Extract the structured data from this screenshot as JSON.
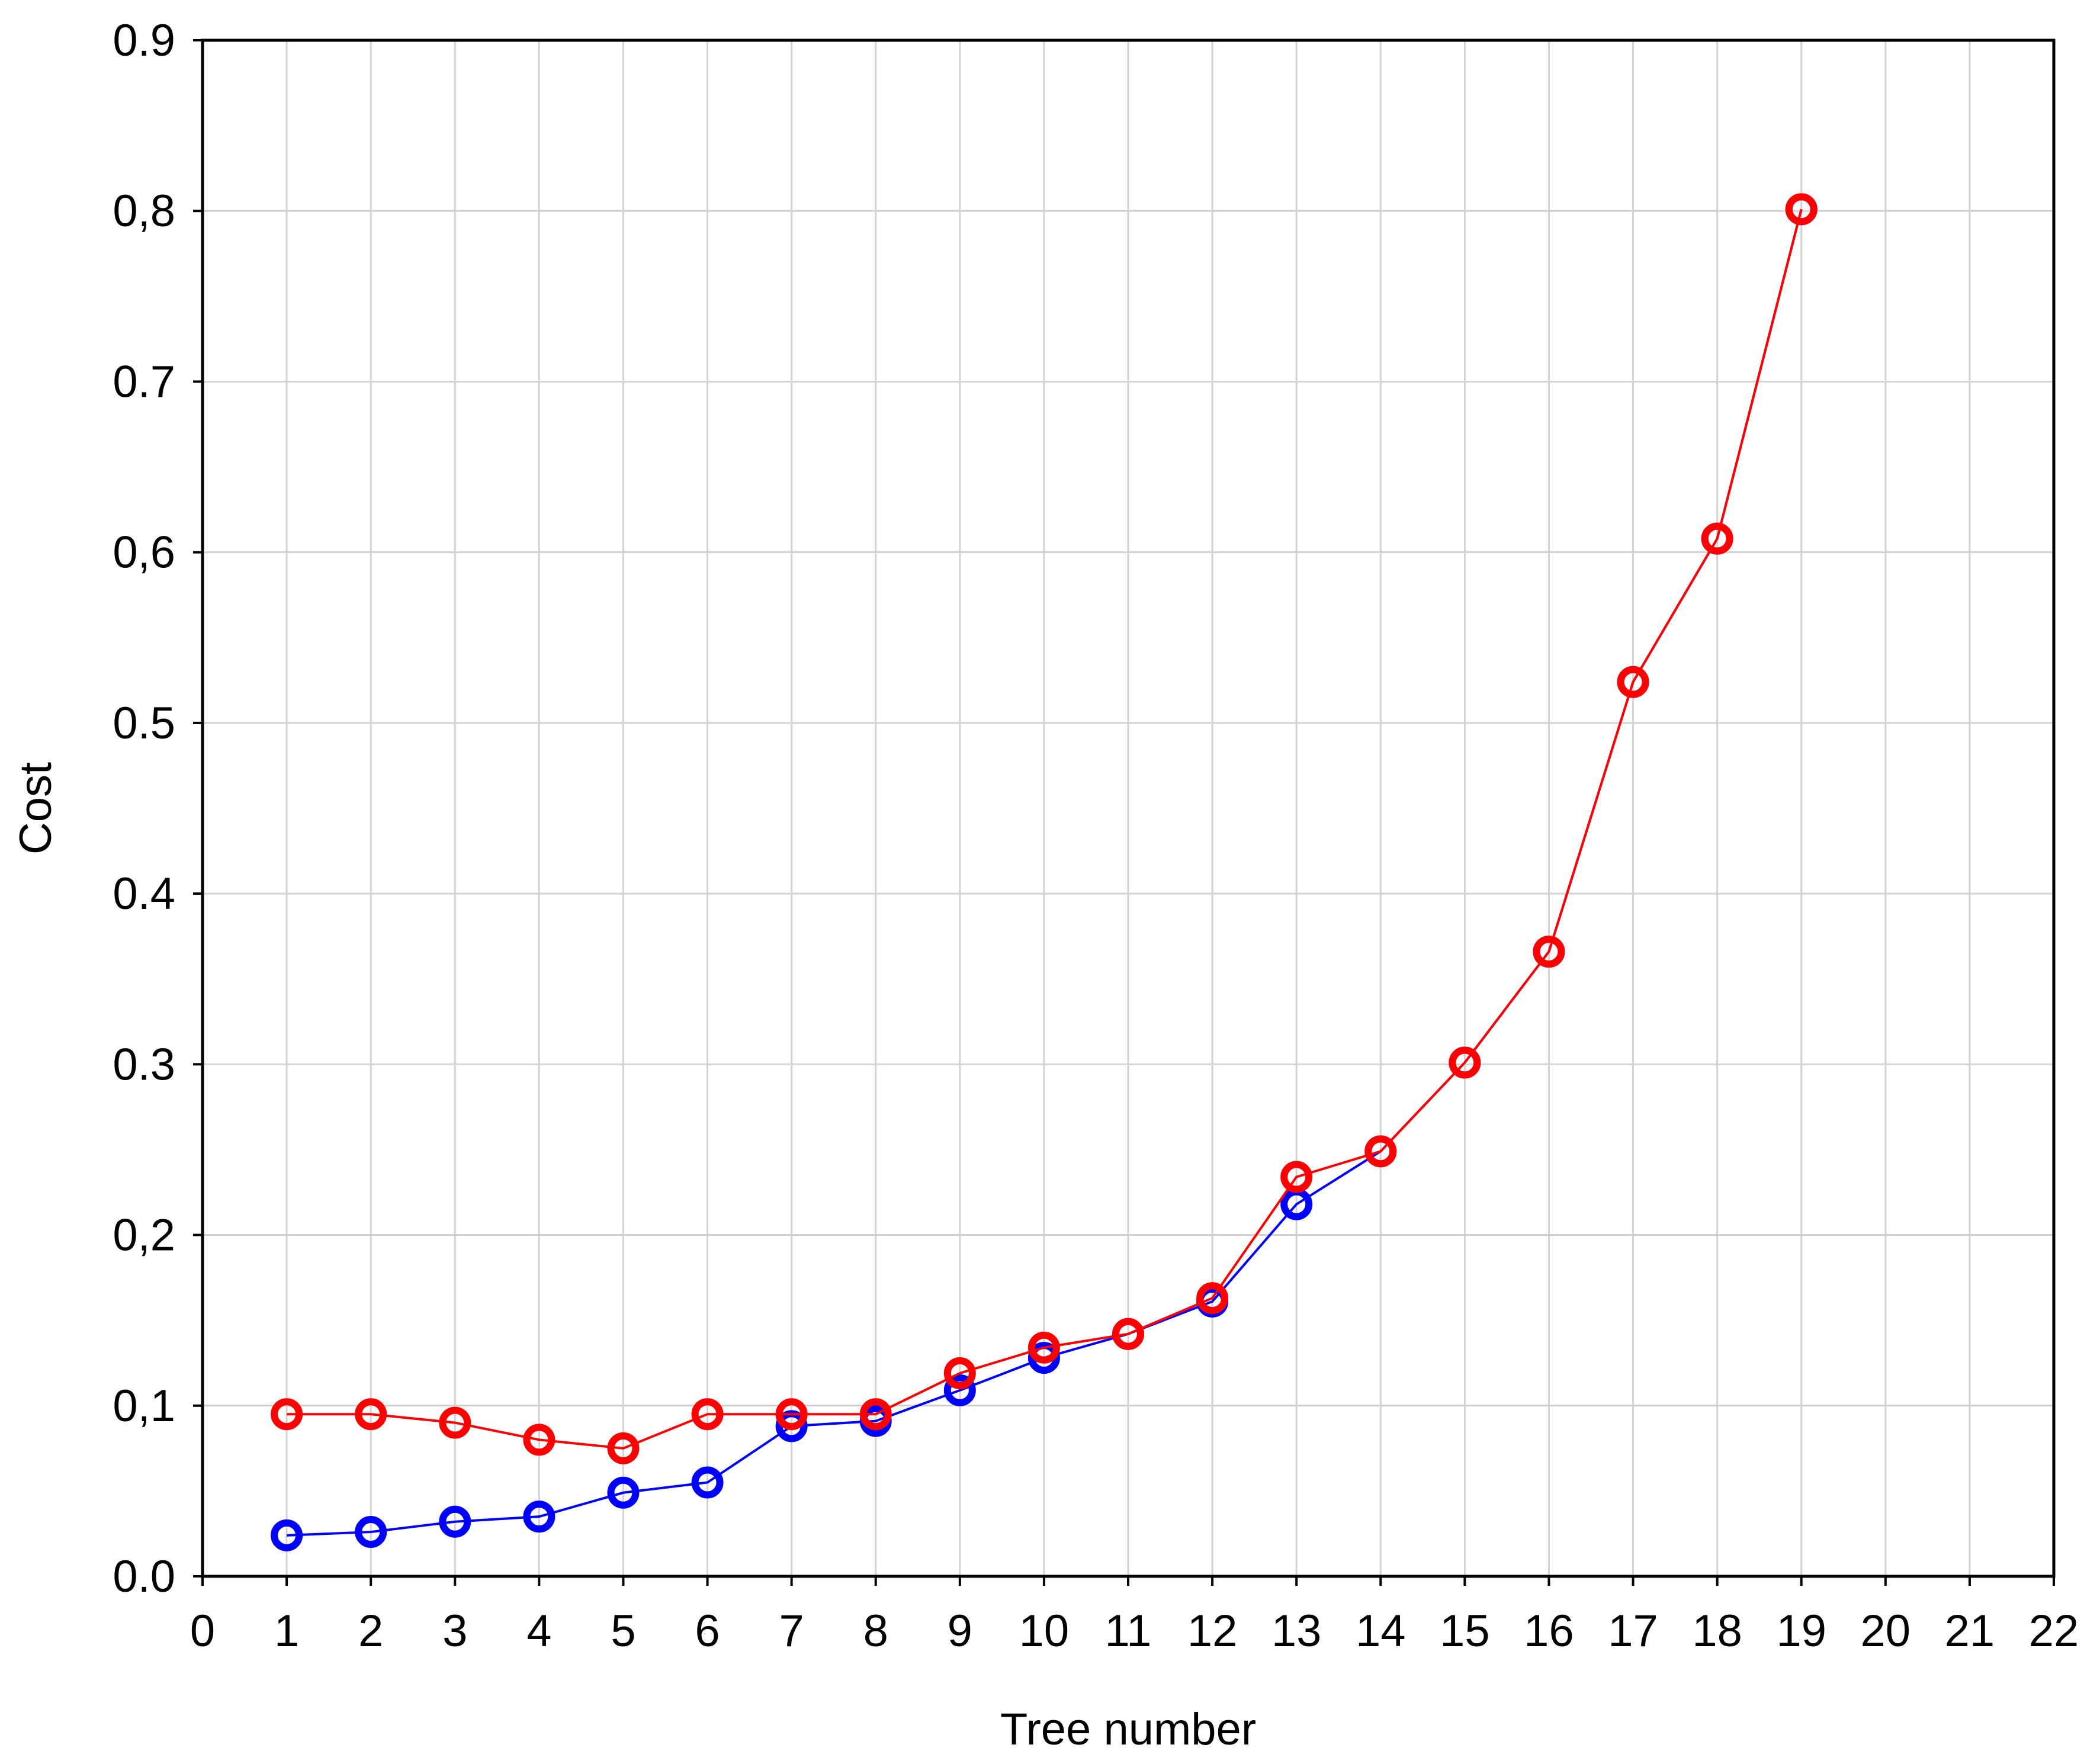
{
  "chart_data": {
    "type": "line",
    "xlabel": "Tree number",
    "ylabel": "Cost",
    "xlim": [
      0,
      22
    ],
    "ylim": [
      0.0,
      0.9
    ],
    "grid": true,
    "x_ticks": [
      "0",
      "1",
      "2",
      "3",
      "4",
      "5",
      "6",
      "7",
      "8",
      "9",
      "10",
      "11",
      "12",
      "13",
      "14",
      "15",
      "16",
      "17",
      "18",
      "19",
      "20",
      "21",
      "22"
    ],
    "y_ticks": [
      "0.0",
      "0,1",
      "0,2",
      "0.3",
      "0.4",
      "0.5",
      "0,6",
      "0.7",
      "0,8",
      "0.9"
    ],
    "x": [
      1,
      2,
      3,
      4,
      5,
      6,
      7,
      8,
      9,
      10,
      11,
      12,
      13,
      14,
      15,
      16,
      17,
      18,
      19
    ],
    "series": [
      {
        "color": "#0000ff",
        "marker": "circle",
        "values": [
          0.024,
          0.026,
          0.032,
          0.035,
          0.049,
          0.055,
          0.088,
          0.091,
          0.109,
          0.128,
          0.142,
          0.161,
          0.218,
          0.249,
          0.301,
          0.366,
          0.524,
          0.608,
          0.801
        ]
      },
      {
        "color": "#ff0000",
        "marker": "circle",
        "values": [
          0.095,
          0.095,
          0.09,
          0.08,
          0.075,
          0.095,
          0.095,
          0.095,
          0.119,
          0.134,
          0.142,
          0.163,
          0.234,
          0.249,
          0.301,
          0.366,
          0.524,
          0.608,
          0.801
        ]
      }
    ]
  }
}
